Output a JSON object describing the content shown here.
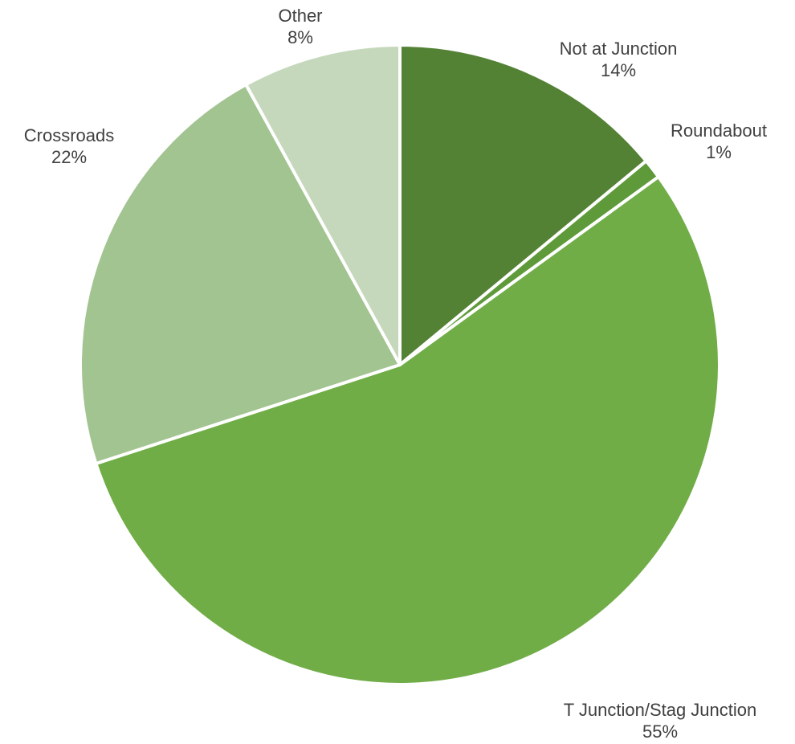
{
  "chart_data": {
    "type": "pie",
    "title": "",
    "slices": [
      {
        "label": "Not at Junction",
        "value": 14,
        "value_label": "14%",
        "color": "#548235"
      },
      {
        "label": "Roundabout",
        "value": 1,
        "value_label": "1%",
        "color": "#5E9A39"
      },
      {
        "label": "T Junction/Stag Junction",
        "value": 55,
        "value_label": "55%",
        "color": "#70AD47"
      },
      {
        "label": "Crossroads",
        "value": 22,
        "value_label": "22%",
        "color": "#A2C490"
      },
      {
        "label": "Other",
        "value": 8,
        "value_label": "8%",
        "color": "#C5D8BC"
      }
    ],
    "start_angle": "12 o'clock",
    "direction": "clockwise",
    "legend": "none",
    "labels": "outside"
  }
}
